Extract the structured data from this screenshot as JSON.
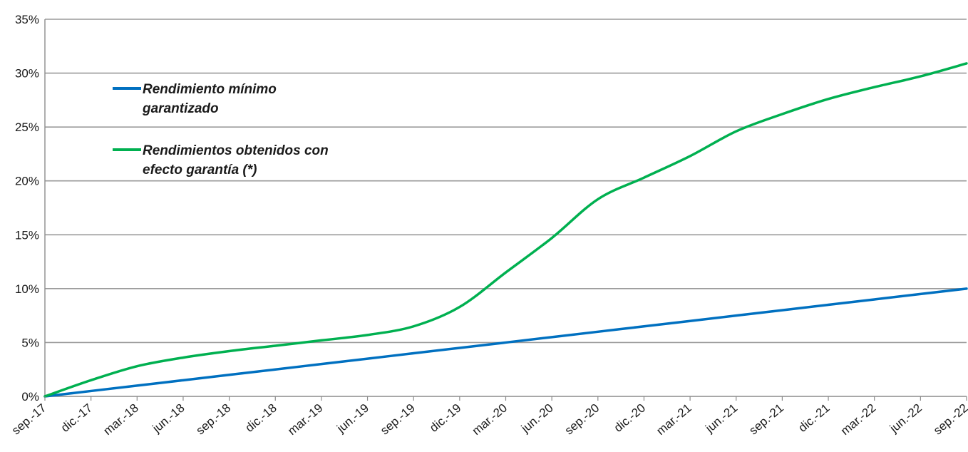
{
  "chart_data": {
    "type": "line",
    "title": "",
    "xlabel": "",
    "ylabel": "",
    "ylim": [
      0,
      35
    ],
    "y_tick_labels": [
      "0%",
      "5%",
      "10%",
      "15%",
      "20%",
      "25%",
      "30%",
      "35%"
    ],
    "x_tick_labels": [
      "sep.-17",
      "dic.-17",
      "mar.-18",
      "jun.-18",
      "sep.-18",
      "dic.-18",
      "mar.-19",
      "jun.-19",
      "sep.-19",
      "dic.-19",
      "mar.-20",
      "jun.-20",
      "sep.-20",
      "dic.-20",
      "mar.-21",
      "jun.-21",
      "sep.-21",
      "dic.-21",
      "mar.-22",
      "jun.-22",
      "sep.-22"
    ],
    "grid": true,
    "legend_position": "top-left",
    "series": [
      {
        "name": "Rendimiento mínimo garantizado",
        "legend_lines": [
          "Rendimiento mínimo",
          "garantizado"
        ],
        "color": "#0070c0",
        "values": [
          0,
          0.5,
          1.0,
          1.5,
          2.0,
          2.5,
          3.0,
          3.5,
          4.0,
          4.5,
          5.0,
          5.5,
          6.0,
          6.5,
          7.0,
          7.5,
          8.0,
          8.5,
          9.0,
          9.5,
          10.0
        ]
      },
      {
        "name": "Rendimientos obtenidos con efecto garantía (*)",
        "legend_lines": [
          "Rendimientos obtenidos con",
          "efecto garantía (*)"
        ],
        "color": "#00b050",
        "values": [
          0,
          1.5,
          2.8,
          3.6,
          4.2,
          4.7,
          5.2,
          5.7,
          6.5,
          8.3,
          11.5,
          14.7,
          18.3,
          20.3,
          22.3,
          24.6,
          26.2,
          27.6,
          28.7,
          29.7,
          30.9
        ]
      }
    ]
  }
}
